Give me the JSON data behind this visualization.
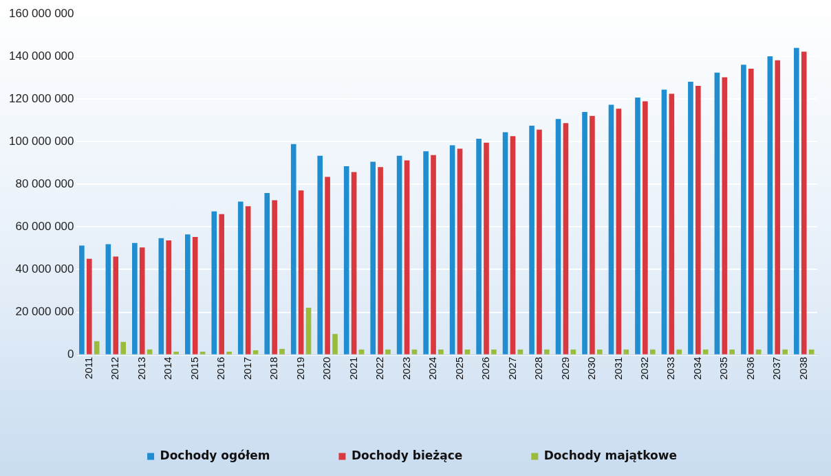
{
  "chart_data": {
    "type": "bar",
    "categories": [
      "2011",
      "2012",
      "2013",
      "2014",
      "2015",
      "2016",
      "2017",
      "2018",
      "2019",
      "2020",
      "2021",
      "2022",
      "2023",
      "2024",
      "2025",
      "2026",
      "2027",
      "2028",
      "2029",
      "2030",
      "2031",
      "2032",
      "2033",
      "2034",
      "2035",
      "2036",
      "2037",
      "2038"
    ],
    "series": [
      {
        "name": "Dochody ogółem",
        "color": "#1f8dd0",
        "values": [
          51300000,
          51900000,
          52500000,
          54700000,
          56500000,
          67300000,
          71900000,
          75900000,
          98900000,
          93400000,
          88500000,
          90600000,
          93400000,
          95500000,
          98300000,
          101400000,
          104400000,
          107500000,
          110600000,
          113900000,
          117300000,
          120700000,
          124400000,
          128100000,
          132400000,
          136100000,
          140000000,
          144000000
        ]
      },
      {
        "name": "Dochody bieżące",
        "color": "#d9393e",
        "values": [
          45100000,
          46100000,
          50400000,
          53700000,
          55300000,
          66000000,
          69700000,
          72500000,
          77100000,
          83500000,
          85700000,
          88100000,
          91200000,
          93700000,
          96700000,
          99500000,
          102600000,
          105600000,
          108700000,
          112100000,
          115500000,
          118900000,
          122500000,
          126200000,
          130200000,
          134200000,
          138200000,
          142200000
        ]
      },
      {
        "name": "Dochody majątkowe",
        "color": "#9bbb3c",
        "values": [
          6400000,
          6100000,
          2500000,
          1500000,
          1500000,
          1500000,
          2100000,
          2800000,
          22100000,
          9800000,
          2500000,
          2500000,
          2500000,
          2500000,
          2500000,
          2500000,
          2500000,
          2500000,
          2500000,
          2500000,
          2500000,
          2500000,
          2500000,
          2500000,
          2500000,
          2500000,
          2500000,
          2500000
        ]
      }
    ],
    "ylim": [
      0,
      160000000
    ],
    "yticks": [
      {
        "value": 0,
        "label": "0"
      },
      {
        "value": 20000000,
        "label": "20 000 000"
      },
      {
        "value": 40000000,
        "label": "40 000 000"
      },
      {
        "value": 60000000,
        "label": "60 000 000"
      },
      {
        "value": 80000000,
        "label": "80 000 000"
      },
      {
        "value": 100000000,
        "label": "100 000 000"
      },
      {
        "value": 120000000,
        "label": "120 000 000"
      },
      {
        "value": 140000000,
        "label": "140 000 000"
      },
      {
        "value": 160000000,
        "label": "160 000 000"
      }
    ],
    "grid": "y",
    "legend": "bottom"
  }
}
